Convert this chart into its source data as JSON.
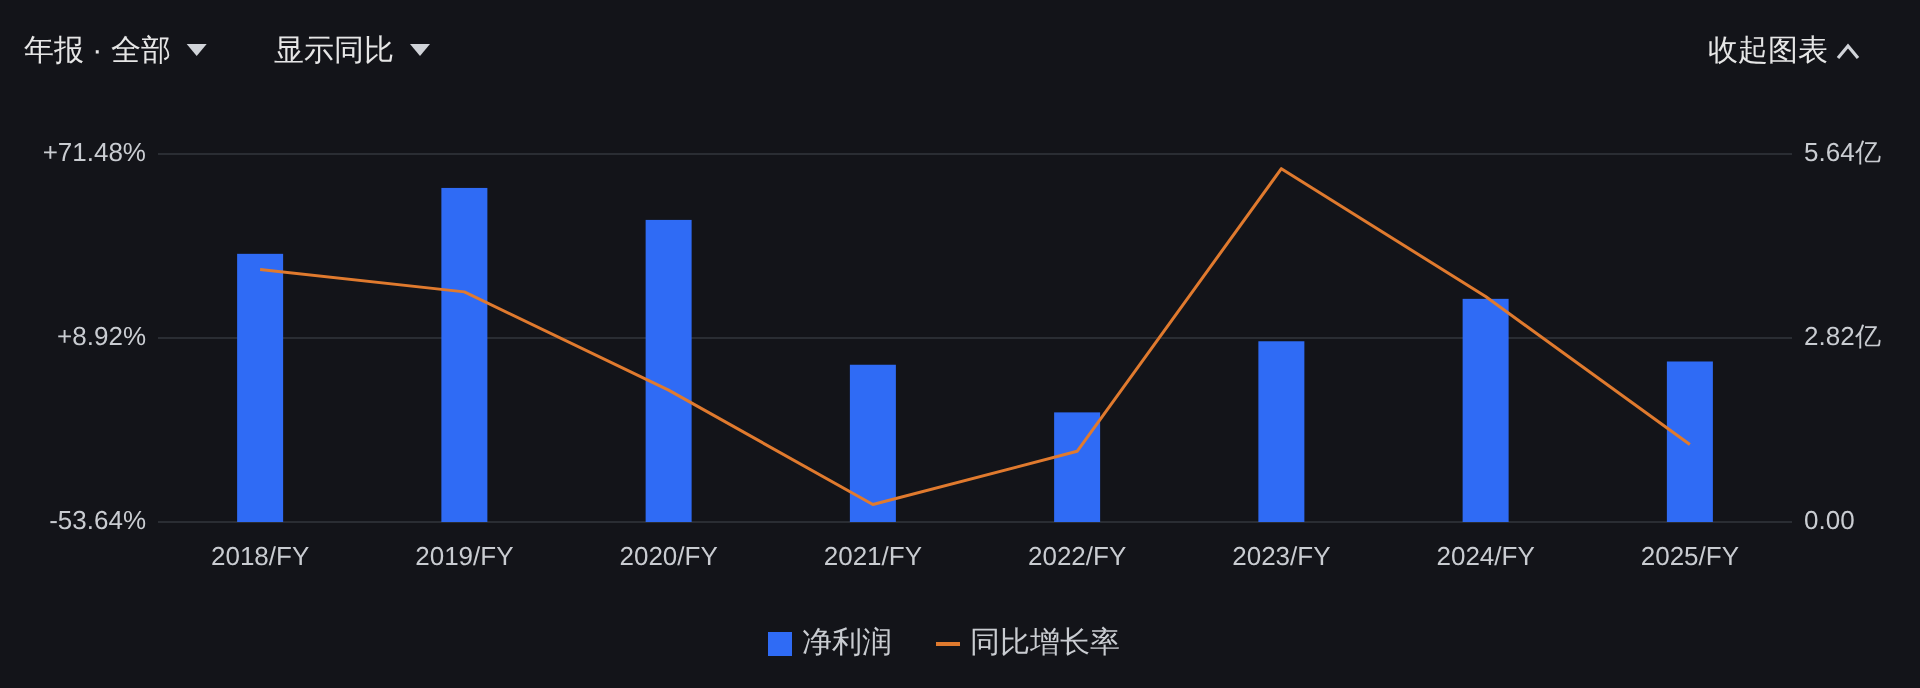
{
  "chart_data": {
    "type": "bar",
    "annotations": [
      "年报 · 全部",
      "显示同比",
      "收起图表"
    ],
    "categories": [
      "2018/FY",
      "2019/FY",
      "2020/FY",
      "2021/FY",
      "2022/FY",
      "2023/FY",
      "2024/FY",
      "2025/FY"
    ],
    "series": [
      {
        "name": "净利润",
        "axis": "y2",
        "color": "#2f6bf5",
        "values": [
          4.11,
          5.12,
          4.63,
          2.41,
          1.68,
          2.77,
          3.42,
          2.46
        ]
      },
      {
        "name": "同比增长率",
        "type": "line",
        "axis": "y",
        "color": "#e07a2e",
        "values": [
          32.2,
          24.6,
          -8.8,
          -47.7,
          -29.6,
          66.5,
          23.0,
          -27.3
        ]
      }
    ],
    "ylim": [
      -53.64,
      71.48
    ],
    "yticks": [
      {
        "value": 71.48,
        "label": "+71.48%"
      },
      {
        "value": 8.92,
        "label": "+8.92%"
      },
      {
        "value": -53.64,
        "label": "-53.64%"
      }
    ],
    "y2lim": [
      0,
      5.64
    ],
    "y2ticks": [
      {
        "value": 5.64,
        "label": "5.64亿"
      },
      {
        "value": 2.82,
        "label": "2.82亿"
      },
      {
        "value": 0,
        "label": "0.00"
      }
    ],
    "grid": "y",
    "legend": "bottom"
  }
}
